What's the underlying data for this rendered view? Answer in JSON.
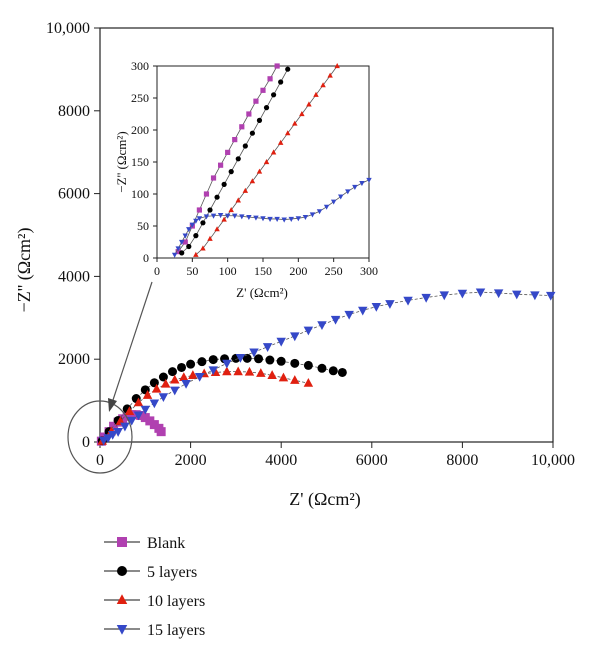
{
  "chart_data": [
    {
      "type": "scatter",
      "panel": "main",
      "xlabel": "Z' (Ωcm²)",
      "ylabel": "−Z'' (Ωcm²)",
      "xlim": [
        0,
        10000
      ],
      "ylim": [
        0,
        10000
      ],
      "xticks": [
        0,
        2000,
        4000,
        6000,
        8000,
        10000
      ],
      "xtick_labels": [
        "0",
        "2000",
        "4000",
        "6000",
        "8000",
        "10,000"
      ],
      "yticks": [
        0,
        2000,
        4000,
        6000,
        8000,
        10000
      ],
      "ytick_labels": [
        "0",
        "2000",
        "4000",
        "6000",
        "8000",
        "10,000"
      ],
      "grid": false,
      "series": [
        {
          "name": "Blank",
          "color": "#b040b0",
          "marker": "square",
          "points": [
            [
              30,
              20
            ],
            [
              100,
              120
            ],
            [
              200,
              250
            ],
            [
              300,
              380
            ],
            [
              400,
              480
            ],
            [
              500,
              560
            ],
            [
              600,
              620
            ],
            [
              700,
              660
            ],
            [
              800,
              660
            ],
            [
              900,
              640
            ],
            [
              1000,
              590
            ],
            [
              1100,
              510
            ],
            [
              1200,
              420
            ],
            [
              1300,
              330
            ],
            [
              1350,
              250
            ]
          ]
        },
        {
          "name": "5 layers",
          "color": "#000000",
          "marker": "circle",
          "points": [
            [
              50,
              30
            ],
            [
              200,
              250
            ],
            [
              400,
              520
            ],
            [
              600,
              800
            ],
            [
              800,
              1050
            ],
            [
              1000,
              1260
            ],
            [
              1200,
              1430
            ],
            [
              1400,
              1570
            ],
            [
              1600,
              1700
            ],
            [
              1800,
              1800
            ],
            [
              2000,
              1880
            ],
            [
              2250,
              1940
            ],
            [
              2500,
              1990
            ],
            [
              2750,
              2010
            ],
            [
              3000,
              2020
            ],
            [
              3250,
              2020
            ],
            [
              3500,
              2010
            ],
            [
              3750,
              1980
            ],
            [
              4000,
              1950
            ],
            [
              4300,
              1900
            ],
            [
              4600,
              1850
            ],
            [
              4900,
              1780
            ],
            [
              5150,
              1720
            ],
            [
              5350,
              1680
            ]
          ]
        },
        {
          "name": "10 layers",
          "color": "#e02010",
          "marker": "triangle-up",
          "points": [
            [
              50,
              20
            ],
            [
              250,
              250
            ],
            [
              450,
              500
            ],
            [
              650,
              740
            ],
            [
              850,
              950
            ],
            [
              1050,
              1130
            ],
            [
              1250,
              1280
            ],
            [
              1450,
              1400
            ],
            [
              1650,
              1500
            ],
            [
              1850,
              1560
            ],
            [
              2050,
              1610
            ],
            [
              2300,
              1650
            ],
            [
              2550,
              1680
            ],
            [
              2800,
              1700
            ],
            [
              3050,
              1700
            ],
            [
              3300,
              1690
            ],
            [
              3550,
              1660
            ],
            [
              3800,
              1610
            ],
            [
              4050,
              1550
            ],
            [
              4300,
              1490
            ],
            [
              4600,
              1420
            ]
          ]
        },
        {
          "name": "15 layers",
          "color": "#3548c8",
          "marker": "triangle-down",
          "points": [
            [
              80,
              40
            ],
            [
              180,
              100
            ],
            [
              280,
              180
            ],
            [
              400,
              250
            ],
            [
              550,
              380
            ],
            [
              700,
              520
            ],
            [
              850,
              650
            ],
            [
              1000,
              790
            ],
            [
              1200,
              940
            ],
            [
              1400,
              1090
            ],
            [
              1650,
              1250
            ],
            [
              1900,
              1410
            ],
            [
              2200,
              1580
            ],
            [
              2500,
              1740
            ],
            [
              2800,
              1900
            ],
            [
              3100,
              2040
            ],
            [
              3400,
              2170
            ],
            [
              3700,
              2300
            ],
            [
              4000,
              2430
            ],
            [
              4300,
              2560
            ],
            [
              4600,
              2700
            ],
            [
              4900,
              2830
            ],
            [
              5200,
              2960
            ],
            [
              5500,
              3080
            ],
            [
              5800,
              3180
            ],
            [
              6100,
              3270
            ],
            [
              6400,
              3340
            ],
            [
              6800,
              3420
            ],
            [
              7200,
              3490
            ],
            [
              7600,
              3550
            ],
            [
              8000,
              3590
            ],
            [
              8400,
              3620
            ],
            [
              8800,
              3600
            ],
            [
              9200,
              3570
            ],
            [
              9600,
              3550
            ],
            [
              9950,
              3540
            ]
          ]
        }
      ]
    },
    {
      "type": "scatter",
      "panel": "inset",
      "xlabel": "Z' (Ωcm²)",
      "ylabel": "−Z'' (Ωcm²)",
      "xlim": [
        0,
        300
      ],
      "ylim": [
        0,
        300
      ],
      "xticks": [
        0,
        50,
        100,
        150,
        200,
        250,
        300
      ],
      "xtick_labels": [
        "0",
        "50",
        "100",
        "150",
        "200",
        "250",
        "300"
      ],
      "yticks": [
        0,
        50,
        100,
        150,
        200,
        250,
        300
      ],
      "ytick_labels": [
        "0",
        "50",
        "100",
        "150",
        "200",
        "250",
        "300"
      ],
      "grid": false,
      "series": [
        {
          "name": "Blank",
          "color": "#b040b0",
          "marker": "square",
          "points": [
            [
              30,
              10
            ],
            [
              40,
              25
            ],
            [
              50,
              50
            ],
            [
              60,
              75
            ],
            [
              70,
              100
            ],
            [
              80,
              125
            ],
            [
              90,
              145
            ],
            [
              100,
              165
            ],
            [
              110,
              185
            ],
            [
              120,
              205
            ],
            [
              130,
              225
            ],
            [
              140,
              245
            ],
            [
              150,
              262
            ],
            [
              160,
              280
            ],
            [
              170,
              300
            ]
          ]
        },
        {
          "name": "5 layers",
          "color": "#000000",
          "marker": "circle",
          "points": [
            [
              35,
              8
            ],
            [
              45,
              18
            ],
            [
              55,
              35
            ],
            [
              65,
              55
            ],
            [
              75,
              75
            ],
            [
              85,
              95
            ],
            [
              95,
              115
            ],
            [
              105,
              135
            ],
            [
              115,
              155
            ],
            [
              125,
              175
            ],
            [
              135,
              195
            ],
            [
              145,
              215
            ],
            [
              155,
              235
            ],
            [
              165,
              255
            ],
            [
              175,
              275
            ],
            [
              185,
              295
            ]
          ]
        },
        {
          "name": "10 layers",
          "color": "#e02010",
          "marker": "triangle-up",
          "points": [
            [
              55,
              5
            ],
            [
              65,
              15
            ],
            [
              75,
              30
            ],
            [
              85,
              45
            ],
            [
              95,
              60
            ],
            [
              105,
              75
            ],
            [
              115,
              90
            ],
            [
              125,
              105
            ],
            [
              135,
              120
            ],
            [
              145,
              135
            ],
            [
              155,
              150
            ],
            [
              165,
              165
            ],
            [
              175,
              180
            ],
            [
              185,
              195
            ],
            [
              195,
              210
            ],
            [
              205,
              225
            ],
            [
              215,
              240
            ],
            [
              225,
              255
            ],
            [
              235,
              270
            ],
            [
              245,
              285
            ],
            [
              255,
              300
            ]
          ]
        },
        {
          "name": "15 layers",
          "color": "#3548c8",
          "marker": "triangle-down",
          "points": [
            [
              25,
              5
            ],
            [
              30,
              15
            ],
            [
              35,
              25
            ],
            [
              40,
              35
            ],
            [
              45,
              45
            ],
            [
              50,
              52
            ],
            [
              55,
              58
            ],
            [
              60,
              62
            ],
            [
              70,
              65
            ],
            [
              80,
              66
            ],
            [
              90,
              67
            ],
            [
              100,
              66
            ],
            [
              110,
              66
            ],
            [
              120,
              65
            ],
            [
              130,
              64
            ],
            [
              140,
              63
            ],
            [
              150,
              62
            ],
            [
              160,
              61
            ],
            [
              170,
              61
            ],
            [
              180,
              60
            ],
            [
              190,
              61
            ],
            [
              200,
              62
            ],
            [
              210,
              64
            ],
            [
              220,
              68
            ],
            [
              230,
              73
            ],
            [
              240,
              80
            ],
            [
              250,
              88
            ],
            [
              260,
              96
            ],
            [
              270,
              104
            ],
            [
              280,
              111
            ],
            [
              290,
              117
            ],
            [
              300,
              122
            ]
          ]
        }
      ]
    }
  ]
}
